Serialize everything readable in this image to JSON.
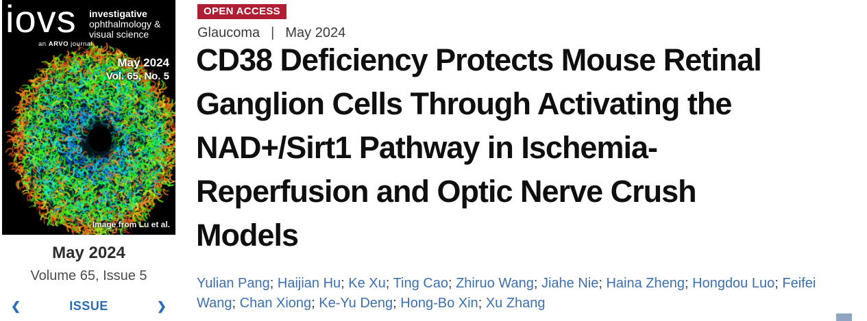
{
  "journal_cover": {
    "logo_text": "iovs",
    "tagline_prefix": "an",
    "tagline_bold": "ARVO",
    "tagline_suffix": "journal",
    "name_lines": [
      "investigative",
      "ophthalmology &",
      "visual science"
    ],
    "issue_date": "May 2024",
    "issue_volume": "Vol. 65, No. 5",
    "image_credit": "Image from Lu et al."
  },
  "issue_nav": {
    "date": "May 2024",
    "volume_issue": "Volume 65, Issue 5",
    "label": "ISSUE",
    "prev_icon": "❮",
    "next_icon": "❯"
  },
  "article": {
    "open_access_label": "OPEN ACCESS",
    "category": "Glaucoma",
    "meta_separator": "|",
    "date": "May 2024",
    "title_lines": [
      "CD38 Deficiency Protects Mouse Retinal",
      "Ganglion Cells Through Activating the",
      "NAD+/Sirt1 Pathway in Ischemia-",
      "Reperfusion and Optic Nerve Crush",
      "Models"
    ],
    "authors": [
      "Yulian Pang",
      "Haijian Hu",
      "Ke Xu",
      "Ting Cao",
      "Zhiruo Wang",
      "Jiahe Nie",
      "Haina Zheng",
      "Hongdou Luo",
      "Feifei Wang",
      "Chan Xiong",
      "Ke-Yu Deng",
      "Hong-Bo Xin",
      "Xu Zhang"
    ],
    "author_separator": "; "
  },
  "colors": {
    "open_access_bg": "#b01e33",
    "author_link_blue": "#3b6fb2",
    "nav_blue": "#2a6db4",
    "corner_widget": "#8fa6c3"
  }
}
